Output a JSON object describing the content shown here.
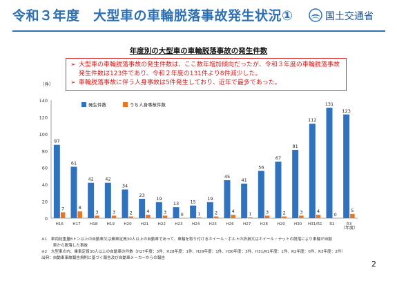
{
  "slide": {
    "title": "令和３年度　大型車の車輪脱落事故発生状況①",
    "logo_text": "国土交通省",
    "logo_icon": "mlit-logo-icon",
    "page_number": "2"
  },
  "notes": {
    "marker": "➢",
    "items": [
      "大型車の車輪脱落事故の発生件数は、ここ数年増加傾向だったが、令和３年度の車輪脱落事故発生件数は123件であり、令和２年度の131件より8件減少した。",
      "車輪脱落事故に伴う人身事故は5件発生しており、近年で最多であった。"
    ]
  },
  "footnotes": [
    "※1　車両総重量8トン以上の自動車又は乗車定員30人以上の自動車であって、車輪を取り付けるホイール・ボルトの折損又はホイール・ナットの脱落により車輪が自動",
    "　　　車から脱落した事故",
    "※2　大型車の内、乗車定員30人以上の自動車の件数（H27年度：3件、H28年度：1件、H29年度：1件、H30年度：3件、H31/R1年度：1件、R2年度：0件、R3年度：2件）",
    "出典：自動車事故報告規則に基づく報告及び自動車メーカーからの報告"
  ],
  "colors": {
    "title": "#2c6fb3",
    "series_total": "#2f72c0",
    "series_injury": "#e87722",
    "note_text": "#d42020"
  },
  "chart_data": {
    "type": "bar",
    "title": "年度別の大型車の車輪脱落事故の発生件数",
    "ylabel": "（件）",
    "xlabel": "（年度）",
    "ylim": [
      0,
      140
    ],
    "yticks": [
      0,
      20,
      40,
      60,
      80,
      100,
      120,
      140
    ],
    "grid": false,
    "legend_position": "top-left",
    "categories": [
      "H16",
      "H17",
      "H18",
      "H19",
      "H20",
      "H21",
      "H22",
      "H23",
      "H24",
      "H25",
      "H26",
      "H27",
      "H28",
      "H29",
      "H30",
      "H31/R1",
      "R2",
      "R3"
    ],
    "series": [
      {
        "name": "発生件数",
        "color": "#2f72c0",
        "values": [
          87,
          61,
          42,
          42,
          34,
          23,
          19,
          13,
          15,
          19,
          45,
          41,
          56,
          67,
          81,
          112,
          131,
          123
        ]
      },
      {
        "name": "うち人身事故件数",
        "color": "#e87722",
        "values": [
          7,
          8,
          3,
          3,
          2,
          4,
          3,
          0,
          1,
          2,
          4,
          1,
          3,
          2,
          3,
          4,
          0,
          5
        ]
      }
    ]
  }
}
